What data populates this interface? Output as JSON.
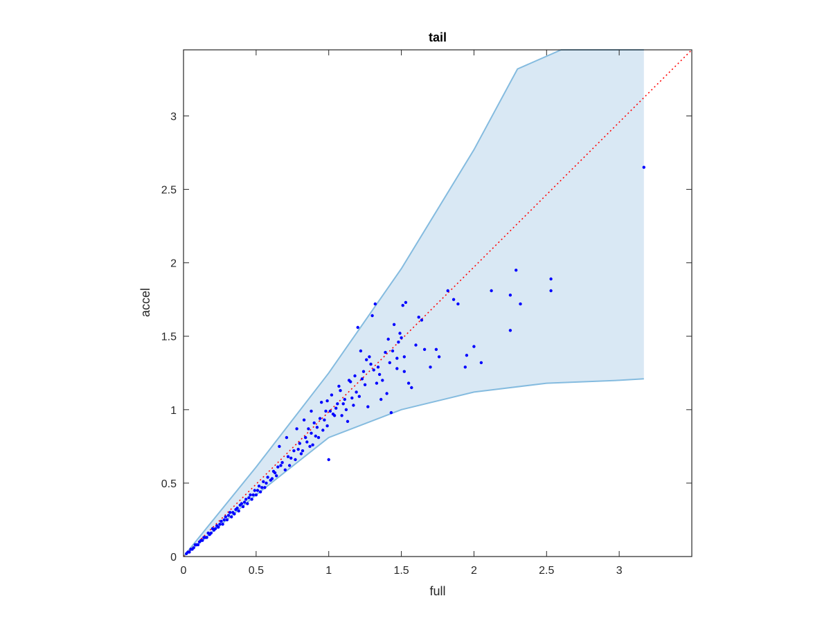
{
  "chart_data": {
    "type": "scatter",
    "title": "tail",
    "xlabel": "full",
    "ylabel": "accel",
    "xlim": [
      0,
      3.5
    ],
    "ylim": [
      0,
      3.45
    ],
    "xticks": [
      0,
      0.5,
      1,
      1.5,
      2,
      2.5,
      3
    ],
    "xtick_labels": [
      "0",
      "0.5",
      "1",
      "1.5",
      "2",
      "2.5",
      "3"
    ],
    "yticks": [
      0,
      0.5,
      1,
      1.5,
      2,
      2.5,
      3
    ],
    "ytick_labels": [
      "0",
      "0.5",
      "1",
      "1.5",
      "2",
      "2.5",
      "3"
    ],
    "grid": false,
    "colors": {
      "points": "#0000ff",
      "band_fill": "#d9e8f4",
      "band_edge": "#84bbdf",
      "reference_line": "#ff0000",
      "axes": "#262626"
    },
    "reference_line": {
      "style": "dotted",
      "x": [
        0,
        3.5
      ],
      "y": [
        0,
        3.5
      ]
    },
    "band": {
      "upper": {
        "x": [
          0,
          0.5,
          1.0,
          1.5,
          2.0,
          2.3,
          2.6,
          3.17
        ],
        "y": [
          0,
          0.61,
          1.25,
          1.96,
          2.77,
          3.32,
          3.45,
          3.45
        ]
      },
      "lower": {
        "x": [
          0,
          0.5,
          1.0,
          1.5,
          2.0,
          2.5,
          3.0,
          3.17
        ],
        "y": [
          0,
          0.42,
          0.81,
          1.0,
          1.12,
          1.18,
          1.2,
          1.21
        ]
      }
    },
    "series": [
      {
        "x": [
          3.17,
          2.53,
          2.53,
          2.29,
          2.25,
          2.25,
          2.32,
          2.12,
          1.82,
          1.86,
          1.89,
          1.95,
          2.0,
          2.05,
          1.94,
          1.76,
          1.74,
          1.7,
          1.66,
          1.64,
          1.62,
          1.6,
          1.55,
          1.52,
          1.5,
          1.48,
          1.47,
          1.53,
          1.51,
          1.45,
          1.42,
          1.39,
          1.37,
          1.34,
          1.32,
          1.3,
          1.28,
          1.26,
          1.25,
          1.22,
          1.2,
          1.18,
          1.36,
          1.43,
          1.57,
          1.52,
          1.47,
          1.4,
          1.33,
          1.29,
          1.24,
          1.21,
          1.15,
          1.11,
          1.08,
          1.05,
          0.98,
          0.94,
          0.9,
          0.86,
          1.12,
          1.17,
          1.09,
          1.06,
          1.01,
          0.97,
          0.92,
          0.88,
          0.84,
          0.8,
          0.76,
          0.72,
          0.68,
          0.65,
          0.62,
          0.58,
          0.55,
          0.52,
          0.49,
          0.46,
          0.43,
          0.4,
          0.37,
          0.34,
          0.31,
          0.28,
          0.25,
          0.22,
          0.19,
          0.16,
          0.13,
          0.1,
          0.07,
          0.04,
          0.02,
          0.66,
          0.71,
          0.78,
          0.83,
          0.88,
          0.95,
          1.02,
          1.07,
          0.74,
          0.79,
          0.85,
          0.91,
          0.96,
          0.6,
          0.63,
          0.67,
          0.56,
          0.53,
          0.5,
          0.47,
          0.44,
          0.41,
          0.38,
          0.35,
          0.33,
          0.3,
          0.27,
          0.24,
          0.21,
          0.18,
          0.15,
          0.12,
          0.09,
          0.06,
          0.03,
          1.0,
          0.99,
          0.93,
          0.87,
          0.81,
          0.77,
          0.73,
          0.7,
          0.64,
          0.61,
          0.57,
          0.54,
          0.51,
          0.48,
          0.45,
          0.42,
          0.39,
          0.36,
          0.32,
          0.29,
          0.26,
          0.23,
          0.2,
          0.17,
          0.14,
          0.11,
          0.08,
          0.05,
          1.14,
          1.19,
          1.27,
          1.35,
          1.41,
          1.44,
          1.49,
          1.31,
          1.23,
          1.16,
          1.1,
          1.04,
          0.99,
          1.13,
          1.03,
          0.89,
          0.82
        ],
        "y": [
          2.65,
          1.89,
          1.81,
          1.95,
          1.78,
          1.54,
          1.72,
          1.81,
          1.81,
          1.75,
          1.72,
          1.37,
          1.43,
          1.32,
          1.29,
          1.36,
          1.41,
          1.29,
          1.41,
          1.61,
          1.63,
          1.44,
          1.18,
          1.26,
          1.49,
          1.46,
          1.35,
          1.73,
          1.71,
          1.58,
          1.32,
          1.39,
          1.2,
          1.29,
          1.72,
          1.64,
          1.36,
          1.34,
          1.17,
          1.4,
          1.56,
          1.23,
          1.07,
          0.98,
          1.15,
          1.36,
          1.28,
          1.11,
          1.18,
          1.31,
          1.26,
          1.09,
          1.19,
          1.07,
          1.13,
          1.01,
          0.99,
          0.94,
          0.91,
          0.87,
          1.0,
          1.03,
          0.96,
          1.04,
          0.99,
          0.93,
          0.88,
          0.84,
          0.81,
          0.77,
          0.72,
          0.68,
          0.64,
          0.61,
          0.58,
          0.54,
          0.51,
          0.48,
          0.45,
          0.42,
          0.39,
          0.36,
          0.33,
          0.3,
          0.28,
          0.25,
          0.22,
          0.19,
          0.16,
          0.13,
          0.11,
          0.08,
          0.06,
          0.03,
          0.02,
          0.75,
          0.81,
          0.87,
          0.93,
          0.99,
          1.05,
          1.1,
          1.16,
          0.67,
          0.73,
          0.78,
          0.82,
          0.86,
          0.52,
          0.57,
          0.62,
          0.47,
          0.44,
          0.42,
          0.39,
          0.36,
          0.34,
          0.31,
          0.29,
          0.27,
          0.25,
          0.22,
          0.2,
          0.18,
          0.15,
          0.13,
          0.11,
          0.08,
          0.05,
          0.03,
          0.66,
          0.89,
          0.81,
          0.75,
          0.7,
          0.66,
          0.62,
          0.59,
          0.55,
          0.53,
          0.5,
          0.47,
          0.45,
          0.42,
          0.4,
          0.37,
          0.35,
          0.32,
          0.3,
          0.27,
          0.24,
          0.21,
          0.19,
          0.16,
          0.13,
          0.1,
          0.08,
          0.05,
          1.2,
          1.12,
          1.02,
          1.24,
          1.48,
          1.4,
          1.52,
          1.27,
          1.21,
          1.08,
          1.04,
          0.96,
          1.06,
          0.92,
          0.97,
          0.76,
          0.72
        ]
      }
    ]
  }
}
